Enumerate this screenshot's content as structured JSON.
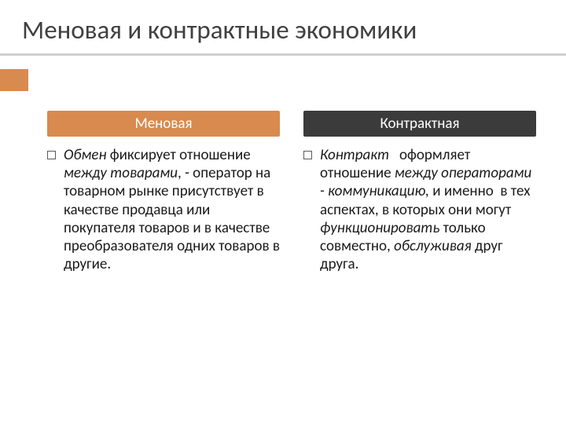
{
  "title": "Меновая и контрактные экономики",
  "colors": {
    "accent": "#d98a4e",
    "dark": "#3b3b3b",
    "title_text": "#404040",
    "underline": "#d0d0d0",
    "body_text": "#1a1a1a",
    "background": "#ffffff"
  },
  "typography": {
    "title_fontsize": 33,
    "header_fontsize": 19,
    "body_fontsize": 19,
    "line_height": 1.22,
    "font_family": "Calibri"
  },
  "columns": [
    {
      "header": "Меновая",
      "header_bg": "#d98a4e",
      "body_html": "<em>Обмен</em> фиксирует отношение <em>между товарами</em>, - оператор на товарном рынке присутствует в качестве продавца или покупателя товаров и в качестве преобразователя одних товаров в другие."
    },
    {
      "header": "Контрактная",
      "header_bg": "#3b3b3b",
      "body_html": "<em>Контракт</em>&nbsp;&nbsp;&nbsp;оформляет отношение <em>между операторами - коммуникацию,</em> и именно&nbsp;&nbsp;в тех аспектах, в которых они могут <em>функционировать</em> только совместно, <em>обслуживая</em> друг друга."
    }
  ]
}
